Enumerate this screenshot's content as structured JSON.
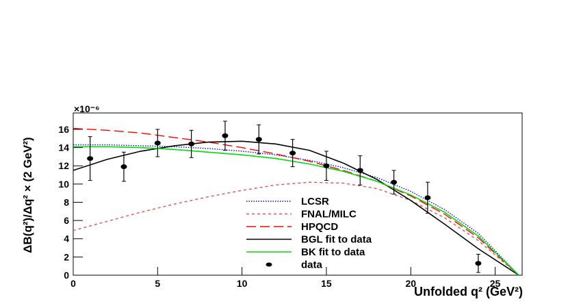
{
  "chart_data": {
    "type": "line",
    "axis_multiplier": "×10⁻⁶",
    "y_label": "ΔB(q²)/Δq² × (2 GeV²)",
    "x_label": "Unfolded q² (GeV²)",
    "xlim": [
      0,
      26.6
    ],
    "xticks": [
      0,
      5,
      10,
      15,
      20,
      25
    ],
    "ylim": [
      0,
      17.8
    ],
    "yticks": [
      0,
      2,
      4,
      6,
      8,
      10,
      12,
      14,
      16
    ],
    "x": [
      0,
      2,
      4,
      6,
      8,
      10,
      12,
      14,
      16,
      18,
      20,
      22,
      24,
      26.4
    ],
    "series": [
      {
        "name": "LCSR",
        "color": "#0000ff",
        "line_style": "dotted",
        "values": [
          14.3,
          14.3,
          14.2,
          14.1,
          13.9,
          13.6,
          13.2,
          12.6,
          11.8,
          10.7,
          9.2,
          7.2,
          4.6,
          0
        ]
      },
      {
        "name": "FNAL/MILC",
        "color": "#e05050",
        "line_style": "dashed",
        "values": [
          4.9,
          5.9,
          6.9,
          7.8,
          8.6,
          9.3,
          9.9,
          10.2,
          10.1,
          9.5,
          8.2,
          6.3,
          3.8,
          0
        ]
      },
      {
        "name": "HPQCD",
        "color": "#ff0000",
        "line_style": "long-dashed",
        "values": [
          16.1,
          15.9,
          15.6,
          15.1,
          14.6,
          14.0,
          13.3,
          12.5,
          11.5,
          10.3,
          8.7,
          6.7,
          4.1,
          0
        ]
      },
      {
        "name": "BGL fit to data",
        "color": "#000000",
        "line_style": "solid",
        "values": [
          11.5,
          12.7,
          13.6,
          14.2,
          14.6,
          14.7,
          14.4,
          13.7,
          12.3,
          10.5,
          8.2,
          5.6,
          2.9,
          0
        ]
      },
      {
        "name": "BK fit to data",
        "color": "#00dd00",
        "line_style": "solid",
        "values": [
          14.1,
          14.1,
          14.0,
          13.8,
          13.5,
          13.2,
          12.8,
          12.2,
          11.4,
          10.3,
          8.8,
          6.9,
          4.3,
          0
        ]
      },
      {
        "name": "data",
        "color": "#000000",
        "line_style": "points",
        "x": [
          1,
          3,
          5,
          7,
          9,
          11,
          13,
          15,
          17,
          19,
          21,
          24
        ],
        "values": [
          12.8,
          11.9,
          14.5,
          14.4,
          15.3,
          14.9,
          13.4,
          12.0,
          11.5,
          10.2,
          8.5,
          1.3
        ],
        "errors": [
          2.4,
          1.6,
          1.5,
          1.5,
          1.6,
          1.6,
          1.5,
          1.6,
          1.6,
          1.3,
          1.7,
          1.0
        ]
      }
    ]
  }
}
